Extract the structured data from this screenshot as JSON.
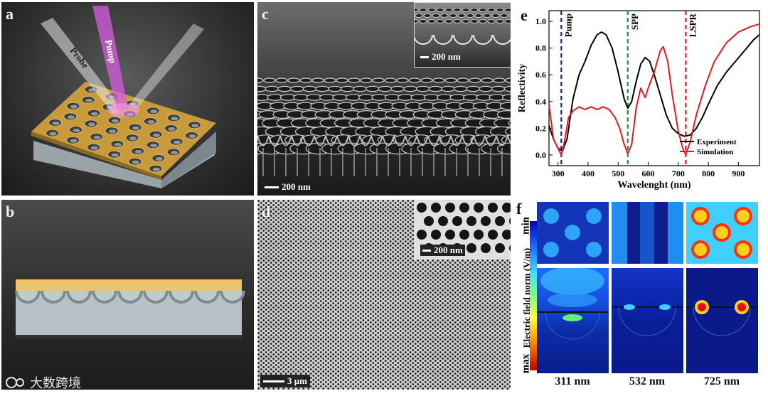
{
  "panels": {
    "a": {
      "label": "a",
      "beam_probe": "Probe",
      "beam_pump": "Pump"
    },
    "b": {
      "label": "b"
    },
    "c": {
      "label": "c",
      "scale_main": "200 nm",
      "scale_inset": "200 nm"
    },
    "d": {
      "label": "d",
      "scale_main": "3 μm",
      "scale_inset": "200 nm"
    },
    "e": {
      "label": "e"
    },
    "f": {
      "label": "f",
      "colorbar_title": "Electric field norm (V/m)",
      "colorbar_min": "min",
      "colorbar_max": "max",
      "wavelengths": [
        "311 nm",
        "532 nm",
        "725 nm"
      ]
    }
  },
  "chart_data": {
    "type": "line",
    "xlabel": "Wavelenght (nm)",
    "ylabel": "Reflectivity",
    "xlim": [
      270,
      970
    ],
    "ylim": [
      -0.08,
      1.08
    ],
    "xticks": [
      300,
      400,
      500,
      600,
      700,
      800,
      900
    ],
    "yticks": [
      0.0,
      0.2,
      0.4,
      0.6,
      0.8,
      1.0
    ],
    "legend_position": "bottom-right",
    "series": [
      {
        "name": "Experiment",
        "color": "#000000",
        "x": [
          270,
          285,
          300,
          315,
          330,
          350,
          370,
          390,
          410,
          430,
          445,
          460,
          480,
          500,
          520,
          532,
          545,
          560,
          575,
          590,
          605,
          620,
          640,
          660,
          680,
          700,
          720,
          740,
          760,
          780,
          800,
          830,
          860,
          890,
          920,
          950,
          970
        ],
        "y": [
          0.22,
          0.12,
          0.05,
          0.03,
          0.12,
          0.42,
          0.6,
          0.7,
          0.82,
          0.9,
          0.92,
          0.9,
          0.8,
          0.62,
          0.42,
          0.35,
          0.4,
          0.55,
          0.68,
          0.73,
          0.7,
          0.6,
          0.45,
          0.3,
          0.2,
          0.16,
          0.14,
          0.15,
          0.2,
          0.28,
          0.38,
          0.52,
          0.62,
          0.7,
          0.78,
          0.86,
          0.9
        ]
      },
      {
        "name": "Simulation",
        "color": "#e31a1c",
        "x": [
          270,
          285,
          300,
          311,
          320,
          335,
          350,
          370,
          390,
          410,
          430,
          450,
          470,
          490,
          505,
          520,
          532,
          545,
          560,
          575,
          590,
          600,
          620,
          640,
          650,
          665,
          680,
          700,
          715,
          725,
          740,
          760,
          790,
          820,
          860,
          900,
          940,
          970
        ],
        "y": [
          0.38,
          0.12,
          0.05,
          0.0,
          0.08,
          0.28,
          0.33,
          0.36,
          0.34,
          0.36,
          0.34,
          0.36,
          0.34,
          0.28,
          0.2,
          0.08,
          0.01,
          0.08,
          0.35,
          0.5,
          0.43,
          0.5,
          0.62,
          0.78,
          0.81,
          0.7,
          0.45,
          0.18,
          0.05,
          0.0,
          0.1,
          0.3,
          0.52,
          0.7,
          0.84,
          0.92,
          0.96,
          0.98
        ]
      }
    ],
    "annotations": [
      {
        "text": "Pump",
        "x": 311,
        "color": "#1a237e"
      },
      {
        "text": "SPP",
        "x": 532,
        "color": "#1a9641"
      },
      {
        "text": "LSPR",
        "x": 725,
        "color": "#d7191c"
      }
    ]
  },
  "watermark": {
    "text": "大数跨境"
  }
}
